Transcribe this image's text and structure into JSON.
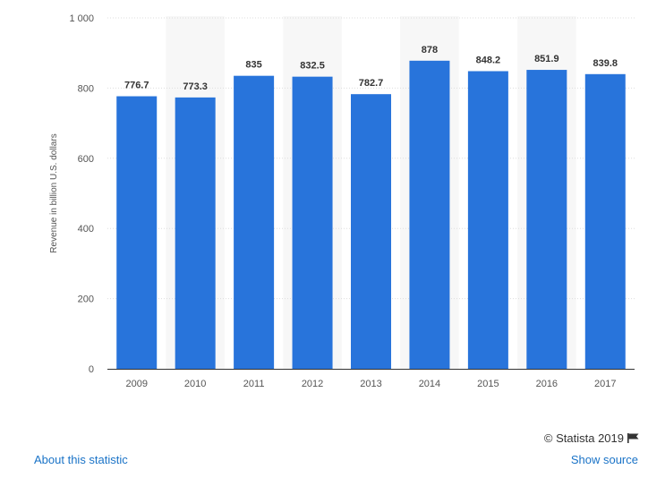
{
  "chart_data": {
    "type": "bar",
    "categories": [
      "2009",
      "2010",
      "2011",
      "2012",
      "2013",
      "2014",
      "2015",
      "2016",
      "2017"
    ],
    "values": [
      776.7,
      773.3,
      835,
      832.5,
      782.7,
      878,
      848.2,
      851.9,
      839.8
    ],
    "value_labels": [
      "776.7",
      "773.3",
      "835",
      "832.5",
      "782.7",
      "878",
      "848.2",
      "851.9",
      "839.8"
    ],
    "ylabel": "Revenue in billion U.S. dollars",
    "xlabel": "",
    "ylim": [
      0,
      1000
    ],
    "yticks": [
      0,
      200,
      400,
      600,
      800,
      1000
    ],
    "ytick_labels": [
      "0",
      "200",
      "400",
      "600",
      "800",
      "1 000"
    ],
    "grid": true,
    "alternating_background": true,
    "bar_color": "#2874db",
    "band_color": "#f7f7f7",
    "grid_color": "#dddddd"
  },
  "footer": {
    "credit": "© Statista 2019",
    "about_link": "About this statistic",
    "source_link": "Show source"
  }
}
